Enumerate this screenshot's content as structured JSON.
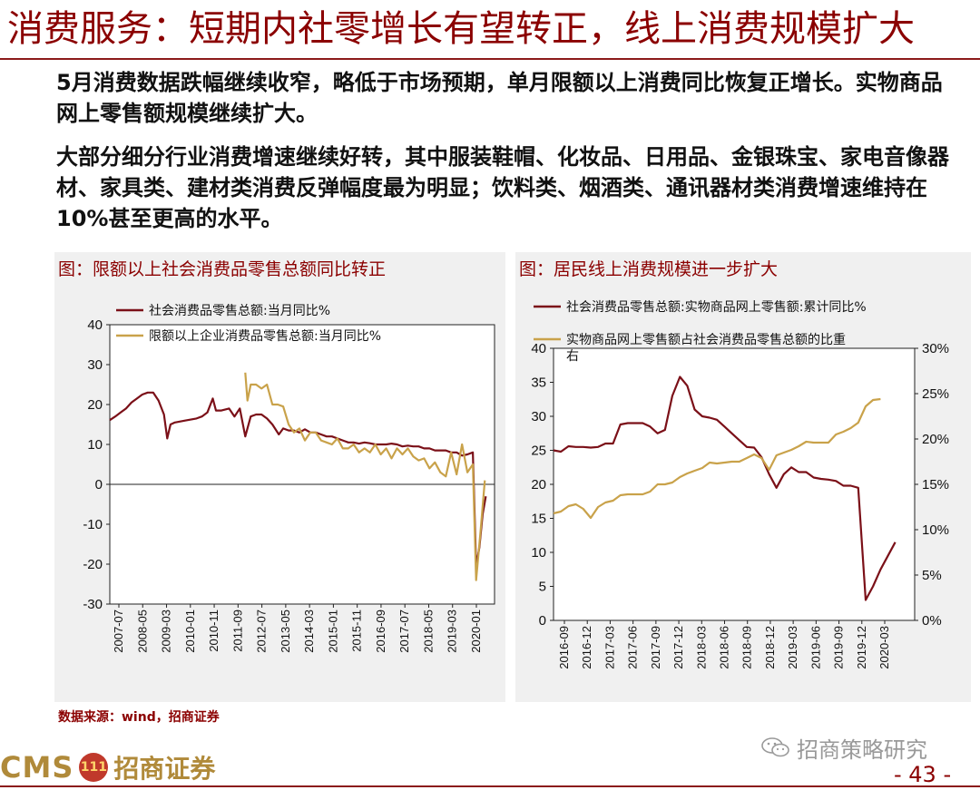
{
  "header": {
    "title": "消费服务：短期内社零增长有望转正，线上消费规模扩大"
  },
  "body": {
    "paragraph1": "5月消费数据跌幅继续收窄，略低于市场预期，单月限额以上消费同比恢复正增长。实物商品网上零售额规模继续扩大。",
    "paragraph2": "大部分细分行业消费增速继续好转，其中服装鞋帽、化妆品、日用品、金银珠宝、家电音像器材、家具类、建材类消费反弹幅度最为明显；饮料类、烟酒类、通讯器材类消费增速维持在10%甚至更高的水平。"
  },
  "footer": {
    "source": "数据来源：wind，招商证券",
    "logo_en": "CMS",
    "logo_badge": "111",
    "logo_cn": "招商证券",
    "watermark": "招商策略研究",
    "page_number": "- 43 -"
  },
  "colors": {
    "brand": "#8b0000",
    "series_dark": "#7b1018",
    "series_gold": "#c9a24a"
  },
  "chart_data": [
    {
      "type": "line",
      "title": "图：限额以上社会消费品零售总额同比转正",
      "xlabel": "",
      "ylabel": "",
      "ylim": [
        -30,
        40
      ],
      "yticks": [
        40,
        30,
        20,
        10,
        0,
        -10,
        -20,
        -30
      ],
      "x_tick_labels": [
        "2007-07",
        "2008-05",
        "2009-03",
        "2010-01",
        "2010-11",
        "2011-09",
        "2012-07",
        "2013-05",
        "2014-03",
        "2015-01",
        "2015-11",
        "2016-09",
        "2017-07",
        "2018-05",
        "2019-03",
        "2020-01"
      ],
      "legend": "top-left",
      "grid": false,
      "series": [
        {
          "name": "社会消费品零售总额:当月同比%",
          "color": "#7b1018",
          "points": [
            [
              0,
              16.1
            ],
            [
              0.5,
              17
            ],
            [
              1,
              18
            ],
            [
              1.5,
              19
            ],
            [
              2,
              20.5
            ],
            [
              2.5,
              21.5
            ],
            [
              3,
              22.5
            ],
            [
              3.5,
              23
            ],
            [
              4,
              23
            ],
            [
              4.5,
              21
            ],
            [
              5,
              17.5
            ],
            [
              5.3,
              11.5
            ],
            [
              5.6,
              15
            ],
            [
              6,
              15.5
            ],
            [
              7,
              16
            ],
            [
              8,
              16.5
            ],
            [
              8.5,
              17
            ],
            [
              9,
              18
            ],
            [
              9.5,
              21.5
            ],
            [
              9.8,
              18.5
            ],
            [
              10.3,
              18.5
            ],
            [
              11,
              19
            ],
            [
              11.5,
              17
            ],
            [
              12,
              19
            ],
            [
              12.5,
              12
            ],
            [
              13,
              17
            ],
            [
              13.5,
              17.5
            ],
            [
              14,
              17.5
            ],
            [
              14.5,
              16.5
            ],
            [
              15,
              15
            ],
            [
              15.6,
              12.5
            ],
            [
              16,
              14
            ],
            [
              16.5,
              13.5
            ],
            [
              17,
              13.5
            ],
            [
              17.5,
              13
            ],
            [
              18,
              13.8
            ],
            [
              18.5,
              13
            ],
            [
              19,
              13
            ],
            [
              19.5,
              12.5
            ],
            [
              20,
              12
            ],
            [
              20.5,
              12
            ],
            [
              21,
              11.5
            ],
            [
              21.5,
              11
            ],
            [
              22,
              10.5
            ],
            [
              22.5,
              10.5
            ],
            [
              23,
              10.2
            ],
            [
              23.5,
              10.5
            ],
            [
              24,
              10.3
            ],
            [
              24.5,
              10
            ],
            [
              25,
              10
            ],
            [
              25.5,
              10
            ],
            [
              26,
              10.2
            ],
            [
              26.5,
              10
            ],
            [
              27,
              9.5
            ],
            [
              27.5,
              9.7
            ],
            [
              28,
              9.5
            ],
            [
              28.5,
              9.5
            ],
            [
              29,
              9
            ],
            [
              29.5,
              9
            ],
            [
              30,
              8.5
            ],
            [
              30.5,
              8.5
            ],
            [
              31,
              8.5
            ],
            [
              31.5,
              8
            ],
            [
              32,
              8
            ],
            [
              32.5,
              7.2
            ],
            [
              33,
              7.5
            ],
            [
              33.5,
              8
            ],
            [
              33.8,
              -20.5
            ],
            [
              34.1,
              -15.8
            ],
            [
              34.4,
              -7.5
            ],
            [
              34.7,
              -3
            ]
          ]
        },
        {
          "name": "限额以上企业消费品零售总额:当月同比%",
          "color": "#c9a24a",
          "points": [
            [
              12.5,
              28
            ],
            [
              12.7,
              21
            ],
            [
              13,
              25
            ],
            [
              13.5,
              25
            ],
            [
              14,
              24
            ],
            [
              14.5,
              25
            ],
            [
              15,
              20
            ],
            [
              15.5,
              20
            ],
            [
              16,
              19.5
            ],
            [
              16.5,
              15
            ],
            [
              17,
              13
            ],
            [
              17.5,
              14
            ],
            [
              18,
              11
            ],
            [
              18.5,
              13
            ],
            [
              19,
              13
            ],
            [
              19.5,
              11
            ],
            [
              20,
              10.5
            ],
            [
              20.5,
              10
            ],
            [
              21,
              11.5
            ],
            [
              21.5,
              9
            ],
            [
              22,
              9
            ],
            [
              22.5,
              10
            ],
            [
              23,
              8
            ],
            [
              23.5,
              9
            ],
            [
              24,
              8
            ],
            [
              24.5,
              10
            ],
            [
              25,
              7.5
            ],
            [
              25.5,
              9
            ],
            [
              26,
              6.5
            ],
            [
              26.5,
              9
            ],
            [
              27,
              7.5
            ],
            [
              27.5,
              9
            ],
            [
              28,
              7
            ],
            [
              28.5,
              6
            ],
            [
              29,
              6.5
            ],
            [
              29.5,
              4
            ],
            [
              30,
              5.5
            ],
            [
              30.5,
              3
            ],
            [
              31,
              2
            ],
            [
              31.5,
              8
            ],
            [
              32,
              2.5
            ],
            [
              32.5,
              10
            ],
            [
              33,
              3
            ],
            [
              33.5,
              5
            ],
            [
              33.8,
              -24
            ],
            [
              34.2,
              -12
            ],
            [
              34.6,
              1
            ]
          ]
        }
      ]
    },
    {
      "type": "line",
      "title": "图：居民线上消费规模进一步扩大",
      "xlabel": "",
      "ylabel": "",
      "ylim": [
        0,
        40
      ],
      "y2lim": [
        0,
        30
      ],
      "yticks": [
        40,
        35,
        30,
        25,
        20,
        15,
        10,
        5,
        0
      ],
      "y2ticks": [
        "30%",
        "25%",
        "20%",
        "15%",
        "10%",
        "5%",
        "0%"
      ],
      "x_tick_labels": [
        "2016-09",
        "2016-12",
        "2017-03",
        "2017-06",
        "2017-09",
        "2017-12",
        "2018-03",
        "2018-06",
        "2018-09",
        "2018-12",
        "2019-03",
        "2019-06",
        "2019-09",
        "2019-12",
        "2020-03"
      ],
      "legend": "top",
      "grid": false,
      "series": [
        {
          "name": "社会消费品零售总额:实物商品网上零售额:累计同比%",
          "axis": "left",
          "color": "#7b1018",
          "points": [
            [
              0,
              25
            ],
            [
              0.33,
              24.8
            ],
            [
              0.67,
              25.6
            ],
            [
              1,
              25.5
            ],
            [
              1.33,
              25.5
            ],
            [
              1.67,
              25.4
            ],
            [
              2,
              25.5
            ],
            [
              2.33,
              26
            ],
            [
              2.67,
              26
            ],
            [
              3,
              28.8
            ],
            [
              3.33,
              29
            ],
            [
              3.67,
              29
            ],
            [
              4,
              29
            ],
            [
              4.33,
              28.5
            ],
            [
              4.67,
              27.5
            ],
            [
              5,
              28
            ],
            [
              5.33,
              33
            ],
            [
              5.67,
              35.8
            ],
            [
              6,
              34.5
            ],
            [
              6.33,
              31
            ],
            [
              6.67,
              30
            ],
            [
              7,
              29.8
            ],
            [
              7.33,
              29.5
            ],
            [
              7.67,
              28.5
            ],
            [
              8,
              27.5
            ],
            [
              8.33,
              26.5
            ],
            [
              8.67,
              25.5
            ],
            [
              9,
              25.4
            ],
            [
              9.33,
              24
            ],
            [
              9.67,
              21.5
            ],
            [
              10,
              19.5
            ],
            [
              10.33,
              21.5
            ],
            [
              10.67,
              22.5
            ],
            [
              11,
              21.8
            ],
            [
              11.33,
              21.8
            ],
            [
              11.67,
              21
            ],
            [
              12,
              20.8
            ],
            [
              12.33,
              20.7
            ],
            [
              12.67,
              20.5
            ],
            [
              13,
              19.8
            ],
            [
              13.33,
              19.8
            ],
            [
              13.67,
              19.5
            ],
            [
              14,
              3
            ],
            [
              14.33,
              5
            ],
            [
              14.67,
              7.5
            ],
            [
              15,
              9.5
            ],
            [
              15.33,
              11.5
            ]
          ]
        },
        {
          "name": "实物商品网上零售额占社会消费品零售总额的比重右",
          "axis": "right",
          "color": "#c9a24a",
          "points": [
            [
              0,
              11.8
            ],
            [
              0.33,
              12
            ],
            [
              0.67,
              12.6
            ],
            [
              1,
              12.8
            ],
            [
              1.33,
              12.3
            ],
            [
              1.67,
              11.3
            ],
            [
              2,
              12.5
            ],
            [
              2.33,
              13
            ],
            [
              2.67,
              13.2
            ],
            [
              3,
              13.8
            ],
            [
              3.33,
              13.9
            ],
            [
              3.67,
              13.9
            ],
            [
              4,
              13.9
            ],
            [
              4.33,
              14.2
            ],
            [
              4.67,
              15
            ],
            [
              5,
              15
            ],
            [
              5.33,
              15.2
            ],
            [
              5.67,
              15.8
            ],
            [
              6,
              16.2
            ],
            [
              6.33,
              16.5
            ],
            [
              6.67,
              16.8
            ],
            [
              7,
              17.4
            ],
            [
              7.33,
              17.3
            ],
            [
              7.67,
              17.4
            ],
            [
              8,
              17.5
            ],
            [
              8.33,
              17.5
            ],
            [
              8.67,
              17.9
            ],
            [
              9,
              18.3
            ],
            [
              9.33,
              17.9
            ],
            [
              9.67,
              16.6
            ],
            [
              10,
              18.2
            ],
            [
              10.33,
              18.5
            ],
            [
              10.67,
              18.8
            ],
            [
              11,
              19.2
            ],
            [
              11.33,
              19.7
            ],
            [
              11.67,
              19.6
            ],
            [
              12,
              19.6
            ],
            [
              12.33,
              19.6
            ],
            [
              12.67,
              20.5
            ],
            [
              13,
              20.8
            ],
            [
              13.33,
              21.2
            ],
            [
              13.67,
              21.8
            ],
            [
              14,
              23.6
            ],
            [
              14.33,
              24.3
            ],
            [
              14.67,
              24.4
            ]
          ]
        }
      ]
    }
  ]
}
